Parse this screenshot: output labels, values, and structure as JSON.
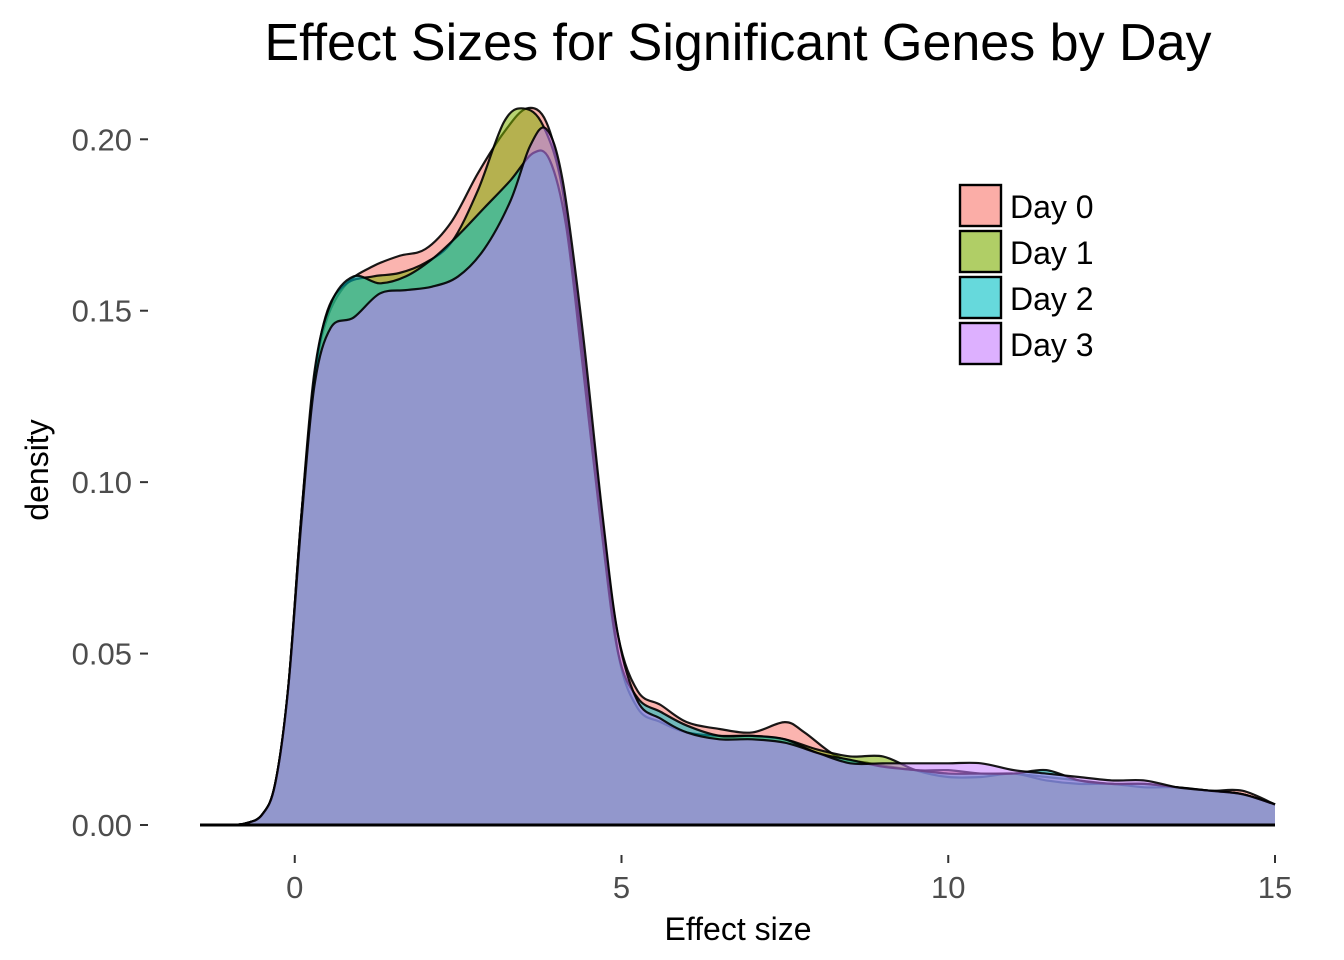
{
  "chart_data": {
    "type": "area",
    "title": "Effect Sizes for Significant Genes by Day",
    "xlabel": "Effect size",
    "ylabel": "density",
    "xlim": [
      -1.45,
      15
    ],
    "ylim": [
      0,
      0.21
    ],
    "xticks": [
      0,
      5,
      10,
      15
    ],
    "yticks": [
      0.0,
      0.05,
      0.1,
      0.15,
      0.2
    ],
    "ytick_labels": [
      "0.00",
      "0.05",
      "0.10",
      "0.15",
      "0.20"
    ],
    "xtick_labels": [
      "0",
      "5",
      "10",
      "15"
    ],
    "grid": false,
    "legend_position": "top-right",
    "series": [
      {
        "name": "Day 0",
        "color": "#F8766D",
        "points": [
          [
            -1.45,
            0
          ],
          [
            -1.0,
            0
          ],
          [
            -0.75,
            0.0005
          ],
          [
            -0.5,
            0.003
          ],
          [
            -0.3,
            0.012
          ],
          [
            -0.1,
            0.04
          ],
          [
            0.1,
            0.09
          ],
          [
            0.3,
            0.13
          ],
          [
            0.5,
            0.148
          ],
          [
            0.8,
            0.158
          ],
          [
            1.2,
            0.163
          ],
          [
            1.6,
            0.166
          ],
          [
            2.0,
            0.168
          ],
          [
            2.4,
            0.176
          ],
          [
            2.8,
            0.19
          ],
          [
            3.2,
            0.202
          ],
          [
            3.55,
            0.209
          ],
          [
            3.85,
            0.205
          ],
          [
            4.1,
            0.185
          ],
          [
            4.4,
            0.14
          ],
          [
            4.7,
            0.09
          ],
          [
            4.95,
            0.055
          ],
          [
            5.25,
            0.039
          ],
          [
            5.6,
            0.035
          ],
          [
            6.0,
            0.03
          ],
          [
            6.5,
            0.028
          ],
          [
            7.0,
            0.027
          ],
          [
            7.5,
            0.03
          ],
          [
            7.8,
            0.027
          ],
          [
            8.3,
            0.02
          ],
          [
            8.8,
            0.018
          ],
          [
            9.5,
            0.016
          ],
          [
            10.0,
            0.016
          ],
          [
            10.5,
            0.015
          ],
          [
            11.0,
            0.015
          ],
          [
            11.5,
            0.014
          ],
          [
            12.0,
            0.013
          ],
          [
            12.5,
            0.012
          ],
          [
            13.0,
            0.012
          ],
          [
            13.5,
            0.011
          ],
          [
            14.0,
            0.01
          ],
          [
            14.5,
            0.01
          ],
          [
            15.0,
            0.006
          ]
        ]
      },
      {
        "name": "Day 1",
        "color": "#7CAE00",
        "points": [
          [
            -1.45,
            0
          ],
          [
            -1.0,
            0
          ],
          [
            -0.75,
            0.0005
          ],
          [
            -0.5,
            0.003
          ],
          [
            -0.3,
            0.012
          ],
          [
            -0.1,
            0.04
          ],
          [
            0.1,
            0.09
          ],
          [
            0.3,
            0.13
          ],
          [
            0.5,
            0.15
          ],
          [
            0.8,
            0.158
          ],
          [
            1.2,
            0.16
          ],
          [
            1.6,
            0.161
          ],
          [
            2.0,
            0.164
          ],
          [
            2.4,
            0.17
          ],
          [
            2.8,
            0.185
          ],
          [
            3.2,
            0.205
          ],
          [
            3.5,
            0.209
          ],
          [
            3.8,
            0.204
          ],
          [
            4.1,
            0.185
          ],
          [
            4.4,
            0.14
          ],
          [
            4.7,
            0.09
          ],
          [
            4.95,
            0.05
          ],
          [
            5.25,
            0.034
          ],
          [
            5.6,
            0.03
          ],
          [
            6.0,
            0.027
          ],
          [
            6.5,
            0.026
          ],
          [
            7.0,
            0.026
          ],
          [
            7.5,
            0.025
          ],
          [
            8.0,
            0.022
          ],
          [
            8.5,
            0.02
          ],
          [
            9.0,
            0.02
          ],
          [
            9.5,
            0.016
          ],
          [
            10.0,
            0.014
          ],
          [
            10.5,
            0.014
          ],
          [
            11.0,
            0.015
          ],
          [
            11.5,
            0.013
          ],
          [
            12.0,
            0.012
          ],
          [
            12.5,
            0.012
          ],
          [
            13.0,
            0.011
          ],
          [
            13.5,
            0.011
          ],
          [
            14.0,
            0.01
          ],
          [
            14.5,
            0.009
          ],
          [
            15.0,
            0.006
          ]
        ]
      },
      {
        "name": "Day 2",
        "color": "#00BFC4",
        "points": [
          [
            -1.45,
            0
          ],
          [
            -1.0,
            0
          ],
          [
            -0.75,
            0.0005
          ],
          [
            -0.5,
            0.003
          ],
          [
            -0.3,
            0.012
          ],
          [
            -0.1,
            0.04
          ],
          [
            0.1,
            0.09
          ],
          [
            0.3,
            0.132
          ],
          [
            0.55,
            0.152
          ],
          [
            0.9,
            0.16
          ],
          [
            1.3,
            0.158
          ],
          [
            1.7,
            0.16
          ],
          [
            2.1,
            0.165
          ],
          [
            2.5,
            0.172
          ],
          [
            2.9,
            0.18
          ],
          [
            3.3,
            0.188
          ],
          [
            3.65,
            0.196
          ],
          [
            3.9,
            0.194
          ],
          [
            4.15,
            0.175
          ],
          [
            4.4,
            0.135
          ],
          [
            4.7,
            0.085
          ],
          [
            4.95,
            0.05
          ],
          [
            5.25,
            0.037
          ],
          [
            5.6,
            0.033
          ],
          [
            6.0,
            0.029
          ],
          [
            6.5,
            0.026
          ],
          [
            7.0,
            0.026
          ],
          [
            7.5,
            0.025
          ],
          [
            8.0,
            0.021
          ],
          [
            8.5,
            0.019
          ],
          [
            9.0,
            0.017
          ],
          [
            9.5,
            0.016
          ],
          [
            10.0,
            0.015
          ],
          [
            10.5,
            0.015
          ],
          [
            11.0,
            0.015
          ],
          [
            11.5,
            0.016
          ],
          [
            12.0,
            0.013
          ],
          [
            12.5,
            0.012
          ],
          [
            13.0,
            0.012
          ],
          [
            13.5,
            0.011
          ],
          [
            14.0,
            0.01
          ],
          [
            14.5,
            0.009
          ],
          [
            15.0,
            0.006
          ]
        ]
      },
      {
        "name": "Day 3",
        "color": "#C77CFF",
        "points": [
          [
            -1.45,
            0
          ],
          [
            -1.0,
            0
          ],
          [
            -0.75,
            0.0005
          ],
          [
            -0.5,
            0.003
          ],
          [
            -0.3,
            0.012
          ],
          [
            -0.1,
            0.04
          ],
          [
            0.1,
            0.088
          ],
          [
            0.3,
            0.128
          ],
          [
            0.55,
            0.145
          ],
          [
            0.9,
            0.148
          ],
          [
            1.3,
            0.155
          ],
          [
            1.7,
            0.156
          ],
          [
            2.1,
            0.157
          ],
          [
            2.5,
            0.16
          ],
          [
            2.9,
            0.168
          ],
          [
            3.3,
            0.182
          ],
          [
            3.6,
            0.198
          ],
          [
            3.85,
            0.203
          ],
          [
            4.1,
            0.188
          ],
          [
            4.4,
            0.145
          ],
          [
            4.7,
            0.092
          ],
          [
            4.95,
            0.055
          ],
          [
            5.25,
            0.036
          ],
          [
            5.6,
            0.031
          ],
          [
            6.0,
            0.027
          ],
          [
            6.5,
            0.025
          ],
          [
            7.0,
            0.025
          ],
          [
            7.5,
            0.024
          ],
          [
            8.0,
            0.021
          ],
          [
            8.5,
            0.018
          ],
          [
            9.0,
            0.018
          ],
          [
            9.5,
            0.018
          ],
          [
            10.0,
            0.018
          ],
          [
            10.5,
            0.018
          ],
          [
            11.0,
            0.016
          ],
          [
            11.5,
            0.015
          ],
          [
            12.0,
            0.014
          ],
          [
            12.5,
            0.013
          ],
          [
            13.0,
            0.013
          ],
          [
            13.5,
            0.011
          ],
          [
            14.0,
            0.01
          ],
          [
            14.5,
            0.009
          ],
          [
            15.0,
            0.006
          ]
        ]
      }
    ]
  },
  "legend": {
    "items": [
      {
        "label": "Day 0",
        "color": "#F8766D"
      },
      {
        "label": "Day 1",
        "color": "#7CAE00"
      },
      {
        "label": "Day 2",
        "color": "#00BFC4"
      },
      {
        "label": "Day 3",
        "color": "#C77CFF"
      }
    ]
  }
}
